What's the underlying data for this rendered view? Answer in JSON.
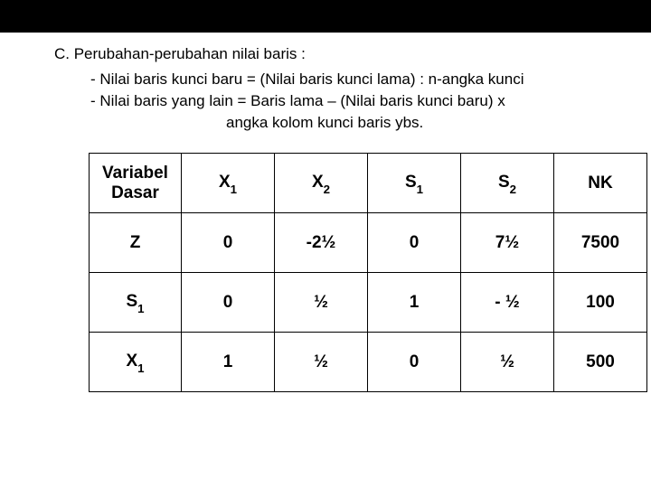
{
  "text": {
    "heading": "C. Perubahan-perubahan nilai baris :",
    "bullet1": "- Nilai baris kunci baru = (Nilai baris kunci lama) : n-angka kunci",
    "bullet2": "- Nilai baris yang lain = Baris lama – (Nilai baris kunci baru) x",
    "bullet3": "angka kolom kunci baris ybs."
  },
  "table": {
    "header_font_size": 19,
    "body_font_size": 19,
    "border_color": "#000000",
    "columns": [
      {
        "label_html": "Variabel<br>Dasar",
        "width": 102
      },
      {
        "label_html": "X<span class='sub'>1</span>",
        "width": 103
      },
      {
        "label_html": "X<span class='sub'>2</span>",
        "width": 103
      },
      {
        "label_html": "S<span class='sub'>1</span>",
        "width": 103
      },
      {
        "label_html": "S<span class='sub'>2</span>",
        "width": 103
      },
      {
        "label_html": "NK",
        "width": 103
      }
    ],
    "rows": [
      {
        "label_html": "Z",
        "cells": [
          "0",
          "-2½",
          "0",
          "7½",
          "7500"
        ]
      },
      {
        "label_html": "S<span class='sub'>1</span>",
        "cells": [
          "0",
          "½",
          "1",
          "- ½",
          "100"
        ]
      },
      {
        "label_html": "X<span class='sub'>1</span>",
        "cells": [
          "1",
          "½",
          "0",
          "½",
          "500"
        ]
      }
    ]
  },
  "colors": {
    "strip": "#000000",
    "background": "#ffffff",
    "text": "#000000"
  }
}
